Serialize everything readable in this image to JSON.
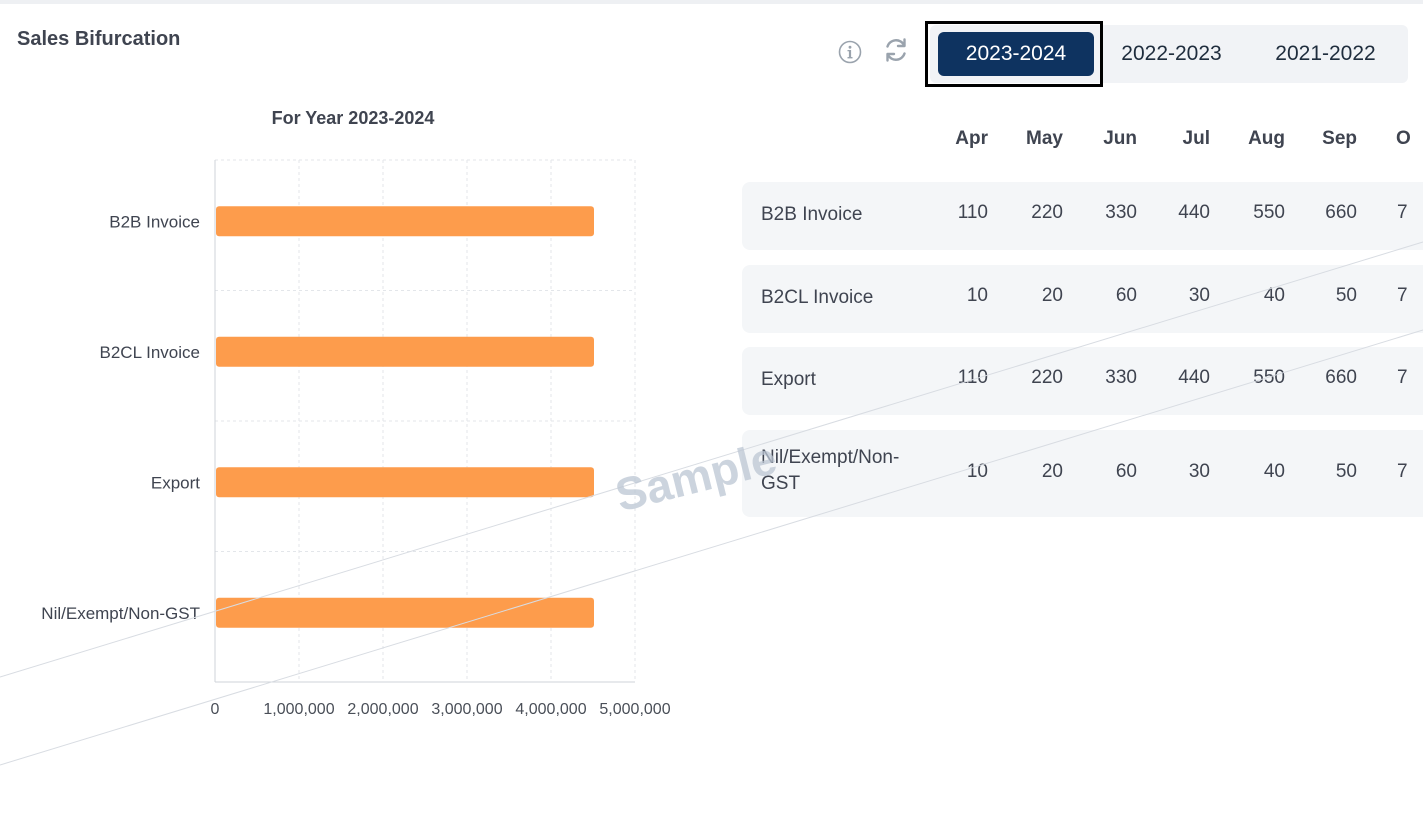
{
  "header": {
    "title": "Sales Bifurcation"
  },
  "icons": {
    "info": "info-icon",
    "refresh": "refresh-icon"
  },
  "tabs": [
    {
      "label": "2023-2024",
      "active": true
    },
    {
      "label": "2022-2023",
      "active": false
    },
    {
      "label": "2021-2022",
      "active": false
    }
  ],
  "colors": {
    "bar": "#fd9c4c",
    "active_tab": "#0e3360",
    "row_bg": "#f4f6f8"
  },
  "chart_data": {
    "type": "bar",
    "orientation": "horizontal",
    "title": "For Year 2023-2024",
    "categories": [
      "B2B Invoice",
      "B2CL Invoice",
      "Export",
      "Nil/Exempt/Non-GST"
    ],
    "values": [
      4500000,
      4500000,
      4500000,
      4500000
    ],
    "xlim": [
      0,
      5000000
    ],
    "xticks": [
      "0",
      "1,000,000",
      "2,000,000",
      "3,000,000",
      "4,000,000",
      "5,000,000"
    ],
    "grid": true
  },
  "table": {
    "months": [
      "Apr",
      "May",
      "Jun",
      "Jul",
      "Aug",
      "Sep",
      "O"
    ],
    "rows": [
      {
        "label": "B2B Invoice",
        "values": [
          "110",
          "220",
          "330",
          "440",
          "550",
          "660",
          "7"
        ]
      },
      {
        "label": "B2CL Invoice",
        "values": [
          "10",
          "20",
          "60",
          "30",
          "40",
          "50",
          "7"
        ]
      },
      {
        "label": "Export",
        "values": [
          "110",
          "220",
          "330",
          "440",
          "550",
          "660",
          "7"
        ]
      },
      {
        "label": "Nil/Exempt/Non-GST",
        "values": [
          "10",
          "20",
          "60",
          "30",
          "40",
          "50",
          "7"
        ]
      }
    ]
  },
  "watermark": "Sample"
}
